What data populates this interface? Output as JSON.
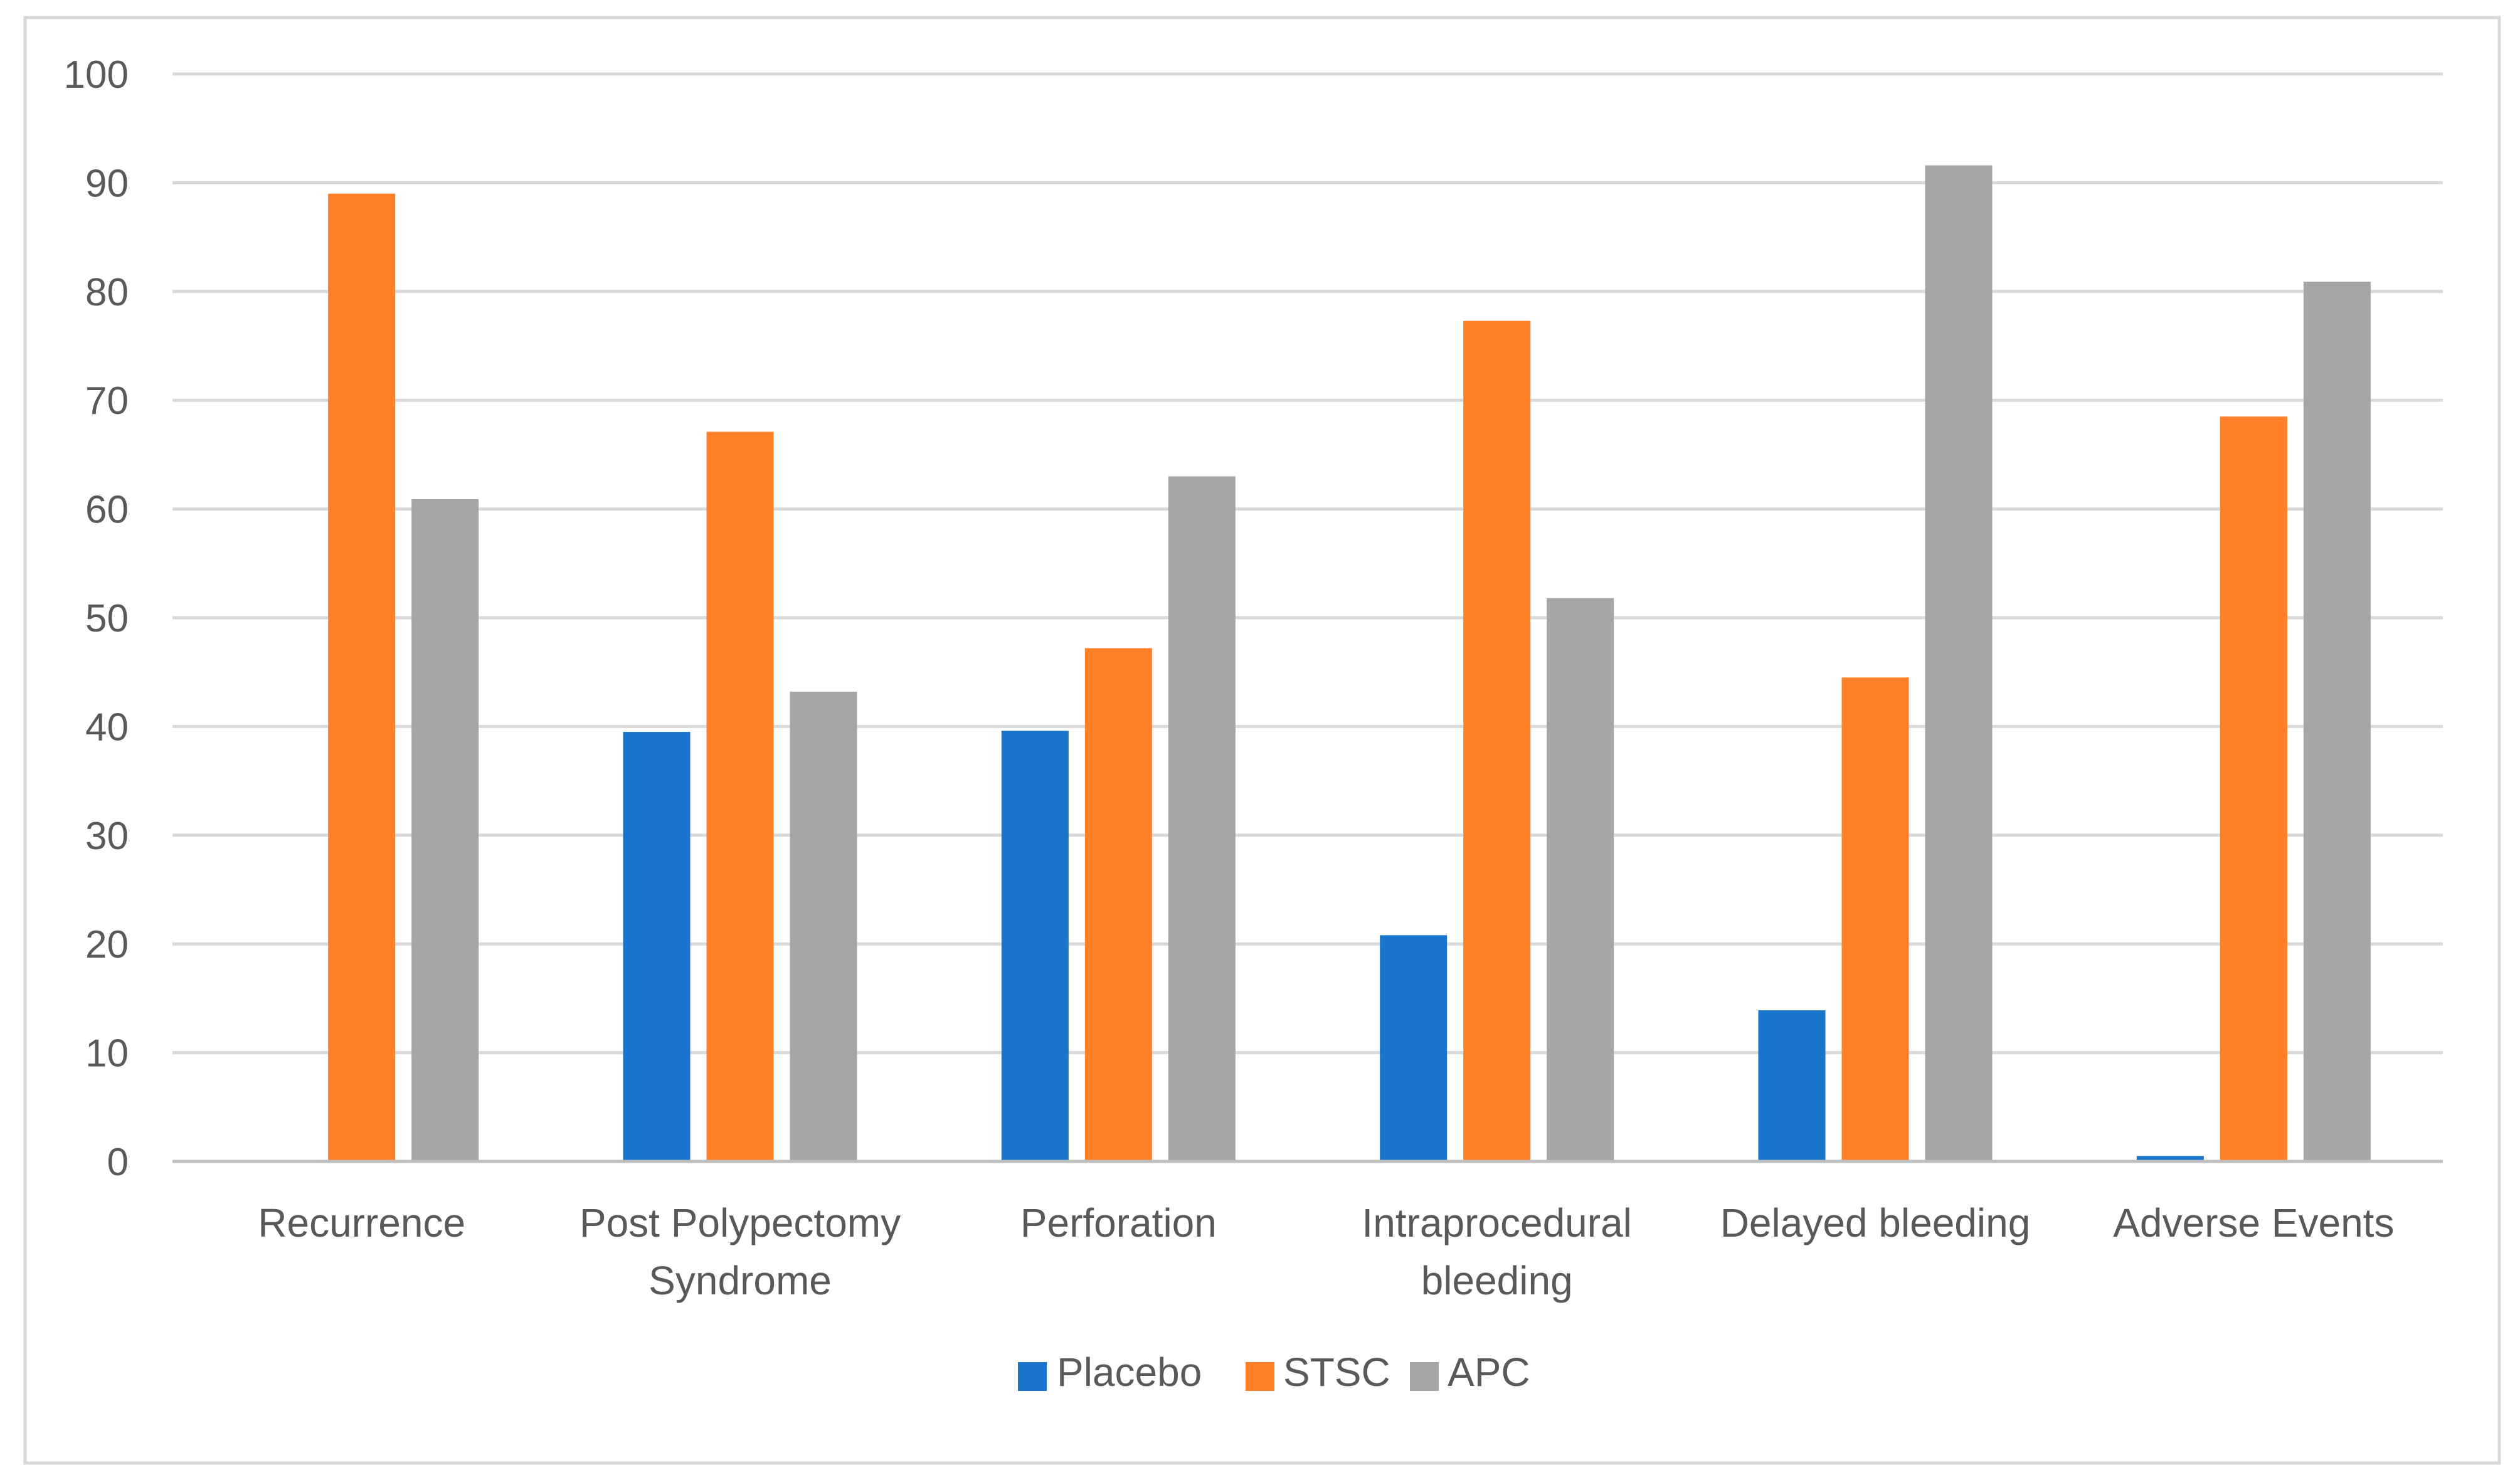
{
  "chart_data": {
    "type": "bar",
    "title": "",
    "xlabel": "",
    "ylabel": "",
    "ylim": [
      0,
      100
    ],
    "yticks": [
      0,
      10,
      20,
      30,
      40,
      50,
      60,
      70,
      80,
      90,
      100
    ],
    "ytick_labels": [
      "0",
      "10",
      "20",
      "30",
      "40",
      "50",
      "60",
      "70",
      "80",
      "90",
      "100"
    ],
    "grid": true,
    "legend_position": "bottom-center",
    "categories": [
      [
        "Recurrence"
      ],
      [
        "Post Polypectomy",
        "Syndrome"
      ],
      [
        "Perforation"
      ],
      [
        "Intraprocedural",
        "bleeding"
      ],
      [
        "Delayed bleeding"
      ],
      [
        "Adverse Events"
      ]
    ],
    "series": [
      {
        "name": "Placebo",
        "color": "#1874CD",
        "values": [
          0,
          39.5,
          39.6,
          20.8,
          13.9,
          0.5
        ]
      },
      {
        "name": "STSC",
        "color": "#FF7F27",
        "values": [
          89.0,
          67.1,
          47.2,
          77.3,
          44.5,
          68.5
        ]
      },
      {
        "name": "APC",
        "color": "#A5A5A5",
        "values": [
          60.9,
          43.2,
          63.0,
          51.8,
          91.6,
          80.9
        ]
      }
    ],
    "colors": {
      "gridline": "#D9D9D9",
      "axis": "#BFBFBF",
      "text": "#595959",
      "border": "#D9D9D9"
    }
  }
}
